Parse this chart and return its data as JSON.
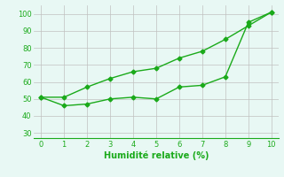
{
  "line1_x": [
    0,
    1,
    2,
    3,
    4,
    5,
    6,
    7,
    8,
    9,
    10
  ],
  "line1_y": [
    51,
    46,
    47,
    50,
    51,
    50,
    57,
    58,
    63,
    95,
    101
  ],
  "line2_x": [
    0,
    1,
    2,
    3,
    4,
    5,
    6,
    7,
    8,
    9,
    10
  ],
  "line2_y": [
    51,
    51,
    57,
    62,
    66,
    68,
    74,
    78,
    85,
    93,
    101
  ],
  "line_color": "#1aaa1a",
  "marker": "D",
  "markersize": 2.5,
  "linewidth": 1.0,
  "xlabel": "Humidité relative (%)",
  "xlabel_color": "#1aaa1a",
  "bg_color": "#e8f8f4",
  "grid_color": "#c0c0c0",
  "ylim": [
    27,
    105
  ],
  "xlim": [
    -0.3,
    10.3
  ],
  "yticks": [
    30,
    40,
    50,
    60,
    70,
    80,
    90,
    100
  ],
  "xticks": [
    0,
    1,
    2,
    3,
    4,
    5,
    6,
    7,
    8,
    9,
    10
  ]
}
